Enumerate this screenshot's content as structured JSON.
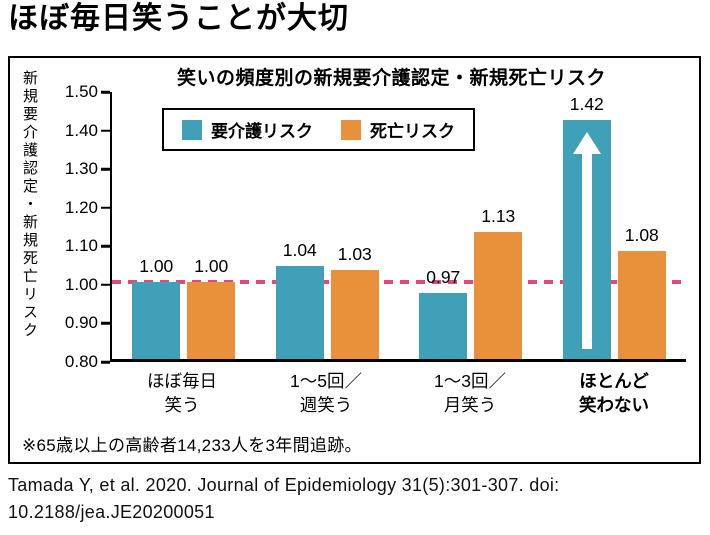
{
  "page": {
    "title": "ほぼ毎日笑うことが大切",
    "citation_line1": "Tamada Y, et al. 2020. Journal of Epidemiology 31(5):301-307. doi:",
    "citation_line2": "10.2188/jea.JE20200051"
  },
  "chart_data": {
    "type": "bar",
    "title": "笑いの頻度別の新規要介護認定・新規死亡リスク",
    "ylabel": "新規要介護認定・新規死亡リスク",
    "xlabel": "",
    "ylim": [
      0.8,
      1.5
    ],
    "yticks": [
      1.5,
      1.4,
      1.3,
      1.2,
      1.1,
      1.0,
      0.9,
      0.8
    ],
    "baseline": 1.0,
    "baseline_color": "#e8457d",
    "grid": false,
    "legend_position": "top-left-inside",
    "categories": [
      "ほぼ毎日\n笑う",
      "1〜5回／\n週笑う",
      "1〜3回／\n月笑う",
      "ほとんど\n笑わない"
    ],
    "bold_category_index": 3,
    "series": [
      {
        "name": "要介護リスク",
        "color": "#3fa0b7",
        "values": [
          1.0,
          1.04,
          0.97,
          1.42
        ]
      },
      {
        "name": "死亡リスク",
        "color": "#e8913a",
        "values": [
          1.0,
          1.03,
          1.13,
          1.08
        ]
      }
    ],
    "annotations": [
      {
        "type": "up-arrow",
        "series_index": 0,
        "category_index": 3,
        "color": "#ffffff"
      }
    ],
    "footnote": "※65歳以上の高齢者14,233人を3年間追跡。"
  }
}
